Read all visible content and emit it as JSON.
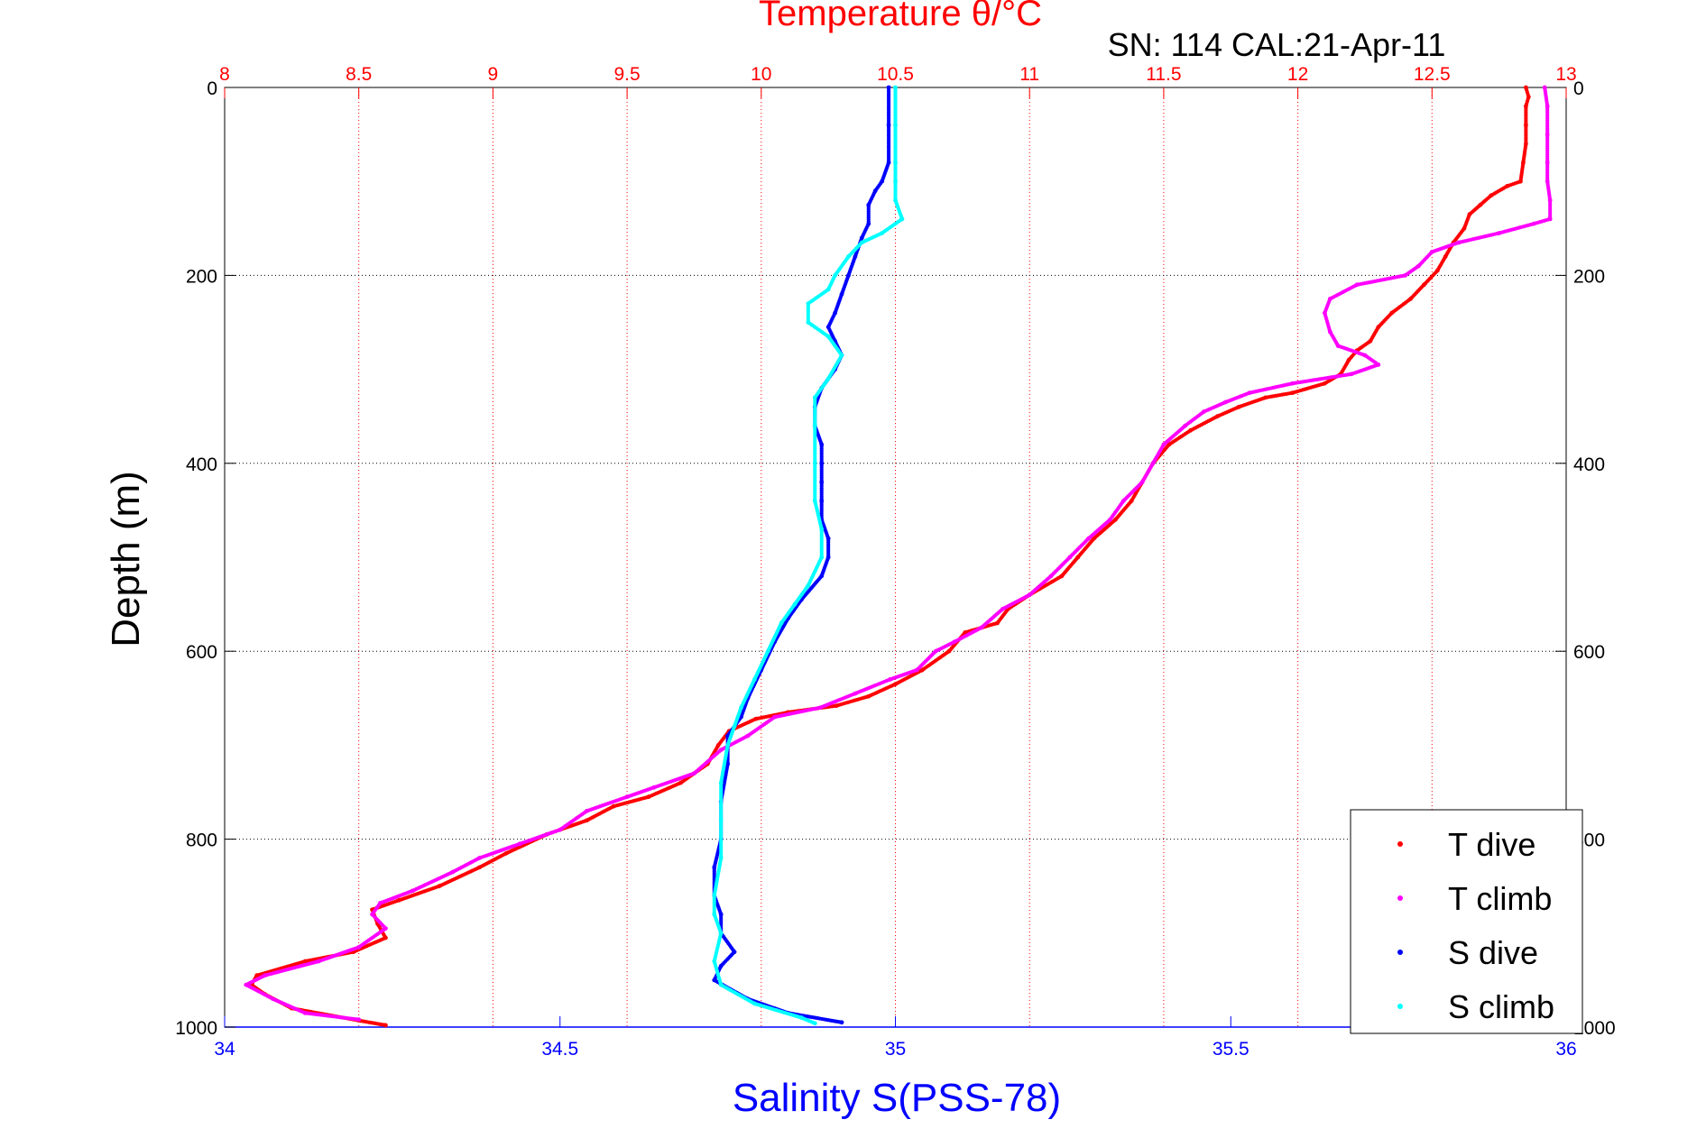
{
  "chart_data": {
    "type": "scatter",
    "title": "Temperature θ/°C",
    "subtitle": "SN: 114  CAL:21-Apr-11",
    "xlabel": "Salinity S(PSS-78)",
    "ylabel": "Depth (m)",
    "x_bottom": {
      "label": "Salinity S(PSS-78)",
      "lim": [
        34,
        36
      ],
      "ticks": [
        "34",
        "34.5",
        "35",
        "35.5",
        "36"
      ],
      "color": "#0000ff"
    },
    "x_top": {
      "label": "Temperature θ/°C",
      "lim": [
        8,
        13
      ],
      "ticks": [
        "8",
        "8.5",
        "9",
        "9.5",
        "10",
        "10.5",
        "11",
        "11.5",
        "12",
        "12.5",
        "13"
      ],
      "color": "#ff0000"
    },
    "y": {
      "label": "Depth (m)",
      "lim": [
        0,
        1000
      ],
      "reversed": true,
      "ticks": [
        "0",
        "200",
        "400",
        "600",
        "800",
        "1000"
      ]
    },
    "grid": true,
    "legend_position": "bottom-right",
    "series": [
      {
        "name": "T dive",
        "axis": "top",
        "color": "#ff0000",
        "points": [
          [
            12.85,
            0
          ],
          [
            12.86,
            10
          ],
          [
            12.85,
            20
          ],
          [
            12.85,
            40
          ],
          [
            12.85,
            60
          ],
          [
            12.84,
            80
          ],
          [
            12.83,
            100
          ],
          [
            12.78,
            105
          ],
          [
            12.72,
            115
          ],
          [
            12.68,
            125
          ],
          [
            12.64,
            135
          ],
          [
            12.62,
            150
          ],
          [
            12.58,
            165
          ],
          [
            12.55,
            180
          ],
          [
            12.52,
            195
          ],
          [
            12.47,
            210
          ],
          [
            12.42,
            225
          ],
          [
            12.35,
            240
          ],
          [
            12.3,
            255
          ],
          [
            12.27,
            270
          ],
          [
            12.22,
            280
          ],
          [
            12.19,
            290
          ],
          [
            12.16,
            305
          ],
          [
            12.1,
            315
          ],
          [
            11.98,
            325
          ],
          [
            11.88,
            330
          ],
          [
            11.78,
            340
          ],
          [
            11.7,
            350
          ],
          [
            11.6,
            365
          ],
          [
            11.52,
            380
          ],
          [
            11.46,
            400
          ],
          [
            11.42,
            420
          ],
          [
            11.38,
            440
          ],
          [
            11.32,
            460
          ],
          [
            11.24,
            480
          ],
          [
            11.18,
            500
          ],
          [
            11.12,
            520
          ],
          [
            11.0,
            540
          ],
          [
            10.92,
            555
          ],
          [
            10.88,
            570
          ],
          [
            10.76,
            580
          ],
          [
            10.7,
            600
          ],
          [
            10.6,
            620
          ],
          [
            10.5,
            635
          ],
          [
            10.4,
            648
          ],
          [
            10.28,
            658
          ],
          [
            10.1,
            665
          ],
          [
            9.98,
            672
          ],
          [
            9.88,
            685
          ],
          [
            9.84,
            700
          ],
          [
            9.8,
            720
          ],
          [
            9.7,
            740
          ],
          [
            9.58,
            755
          ],
          [
            9.45,
            765
          ],
          [
            9.35,
            780
          ],
          [
            9.2,
            795
          ],
          [
            9.05,
            815
          ],
          [
            8.95,
            830
          ],
          [
            8.8,
            850
          ],
          [
            8.65,
            865
          ],
          [
            8.55,
            875
          ],
          [
            8.57,
            890
          ],
          [
            8.6,
            905
          ],
          [
            8.48,
            920
          ],
          [
            8.3,
            930
          ],
          [
            8.12,
            945
          ],
          [
            8.1,
            955
          ],
          [
            8.15,
            965
          ],
          [
            8.25,
            980
          ],
          [
            8.5,
            993
          ],
          [
            8.6,
            998
          ]
        ]
      },
      {
        "name": "T climb",
        "axis": "top",
        "color": "#ff00ff",
        "points": [
          [
            12.92,
            0
          ],
          [
            12.93,
            20
          ],
          [
            12.93,
            50
          ],
          [
            12.93,
            80
          ],
          [
            12.93,
            100
          ],
          [
            12.94,
            120
          ],
          [
            12.94,
            140
          ],
          [
            12.88,
            145
          ],
          [
            12.75,
            155
          ],
          [
            12.6,
            165
          ],
          [
            12.5,
            175
          ],
          [
            12.45,
            190
          ],
          [
            12.4,
            200
          ],
          [
            12.22,
            210
          ],
          [
            12.12,
            225
          ],
          [
            12.1,
            240
          ],
          [
            12.12,
            260
          ],
          [
            12.15,
            275
          ],
          [
            12.25,
            285
          ],
          [
            12.3,
            295
          ],
          [
            12.2,
            305
          ],
          [
            11.98,
            315
          ],
          [
            11.82,
            325
          ],
          [
            11.73,
            335
          ],
          [
            11.65,
            345
          ],
          [
            11.58,
            360
          ],
          [
            11.5,
            380
          ],
          [
            11.46,
            400
          ],
          [
            11.42,
            420
          ],
          [
            11.35,
            440
          ],
          [
            11.3,
            460
          ],
          [
            11.22,
            480
          ],
          [
            11.15,
            500
          ],
          [
            11.08,
            520
          ],
          [
            11.0,
            540
          ],
          [
            10.9,
            555
          ],
          [
            10.82,
            575
          ],
          [
            10.72,
            590
          ],
          [
            10.65,
            600
          ],
          [
            10.58,
            620
          ],
          [
            10.48,
            630
          ],
          [
            10.35,
            645
          ],
          [
            10.22,
            660
          ],
          [
            10.05,
            670
          ],
          [
            9.95,
            690
          ],
          [
            9.85,
            705
          ],
          [
            9.75,
            730
          ],
          [
            9.6,
            745
          ],
          [
            9.5,
            755
          ],
          [
            9.35,
            770
          ],
          [
            9.25,
            790
          ],
          [
            9.1,
            805
          ],
          [
            8.95,
            820
          ],
          [
            8.85,
            835
          ],
          [
            8.7,
            855
          ],
          [
            8.58,
            868
          ],
          [
            8.55,
            880
          ],
          [
            8.6,
            895
          ],
          [
            8.5,
            915
          ],
          [
            8.35,
            930
          ],
          [
            8.15,
            945
          ],
          [
            8.08,
            955
          ],
          [
            8.18,
            970
          ],
          [
            8.3,
            985
          ],
          [
            8.5,
            992
          ]
        ]
      },
      {
        "name": "S dive",
        "axis": "bottom",
        "color": "#0000ff",
        "points": [
          [
            34.99,
            0
          ],
          [
            34.99,
            40
          ],
          [
            34.99,
            80
          ],
          [
            34.98,
            100
          ],
          [
            34.97,
            110
          ],
          [
            34.96,
            125
          ],
          [
            34.96,
            145
          ],
          [
            34.95,
            160
          ],
          [
            34.94,
            180
          ],
          [
            34.93,
            200
          ],
          [
            34.92,
            220
          ],
          [
            34.91,
            240
          ],
          [
            34.9,
            255
          ],
          [
            34.91,
            270
          ],
          [
            34.92,
            285
          ],
          [
            34.91,
            300
          ],
          [
            34.89,
            320
          ],
          [
            34.88,
            340
          ],
          [
            34.88,
            360
          ],
          [
            34.89,
            380
          ],
          [
            34.89,
            400
          ],
          [
            34.89,
            420
          ],
          [
            34.89,
            440
          ],
          [
            34.89,
            460
          ],
          [
            34.9,
            480
          ],
          [
            34.9,
            500
          ],
          [
            34.89,
            520
          ],
          [
            34.86,
            545
          ],
          [
            34.84,
            565
          ],
          [
            34.82,
            590
          ],
          [
            34.8,
            620
          ],
          [
            34.78,
            650
          ],
          [
            34.77,
            670
          ],
          [
            34.75,
            690
          ],
          [
            34.75,
            720
          ],
          [
            34.74,
            760
          ],
          [
            34.74,
            800
          ],
          [
            34.73,
            830
          ],
          [
            34.73,
            860
          ],
          [
            34.74,
            880
          ],
          [
            34.74,
            900
          ],
          [
            34.76,
            920
          ],
          [
            34.74,
            935
          ],
          [
            34.73,
            950
          ],
          [
            34.78,
            970
          ],
          [
            34.84,
            985
          ],
          [
            34.92,
            995
          ]
        ]
      },
      {
        "name": "S climb",
        "axis": "bottom",
        "color": "#00ffff",
        "points": [
          [
            35.0,
            0
          ],
          [
            35.0,
            40
          ],
          [
            35.0,
            80
          ],
          [
            35.0,
            100
          ],
          [
            35.0,
            120
          ],
          [
            35.01,
            140
          ],
          [
            34.98,
            155
          ],
          [
            34.95,
            165
          ],
          [
            34.93,
            180
          ],
          [
            34.91,
            200
          ],
          [
            34.9,
            215
          ],
          [
            34.87,
            230
          ],
          [
            34.87,
            250
          ],
          [
            34.9,
            265
          ],
          [
            34.92,
            285
          ],
          [
            34.9,
            310
          ],
          [
            34.88,
            330
          ],
          [
            34.88,
            360
          ],
          [
            34.88,
            400
          ],
          [
            34.88,
            440
          ],
          [
            34.89,
            470
          ],
          [
            34.89,
            500
          ],
          [
            34.87,
            530
          ],
          [
            34.85,
            550
          ],
          [
            34.83,
            570
          ],
          [
            34.81,
            600
          ],
          [
            34.79,
            630
          ],
          [
            34.77,
            660
          ],
          [
            34.76,
            680
          ],
          [
            34.75,
            700
          ],
          [
            34.74,
            740
          ],
          [
            34.74,
            780
          ],
          [
            34.74,
            820
          ],
          [
            34.73,
            860
          ],
          [
            34.73,
            880
          ],
          [
            34.74,
            900
          ],
          [
            34.73,
            930
          ],
          [
            34.74,
            955
          ],
          [
            34.79,
            975
          ],
          [
            34.86,
            990
          ],
          [
            34.88,
            996
          ]
        ]
      }
    ]
  }
}
